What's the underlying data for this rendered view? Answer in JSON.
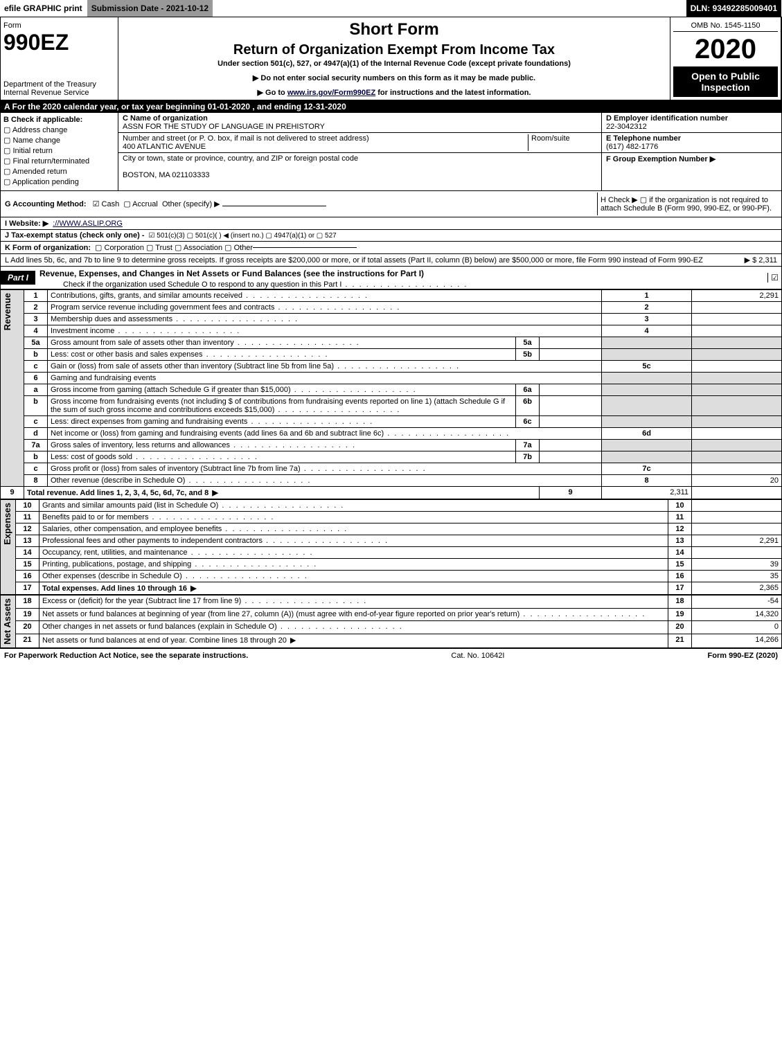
{
  "topbar": {
    "efile": "efile GRAPHIC print",
    "submission_label": "Submission Date - 2021-10-12",
    "dln": "DLN: 93492285009401"
  },
  "header": {
    "form_word": "Form",
    "form_number": "990EZ",
    "dept1": "Department of the Treasury",
    "dept2": "Internal Revenue Service",
    "title1": "Short Form",
    "title2": "Return of Organization Exempt From Income Tax",
    "subtitle": "Under section 501(c), 527, or 4947(a)(1) of the Internal Revenue Code (except private foundations)",
    "note1": "▶ Do not enter social security numbers on this form as it may be made public.",
    "note2_pre": "▶ Go to ",
    "note2_link": "www.irs.gov/Form990EZ",
    "note2_post": " for instructions and the latest information.",
    "omb": "OMB No. 1545-1150",
    "year": "2020",
    "open": "Open to Public Inspection"
  },
  "line_a": "A For the 2020 calendar year, or tax year beginning 01-01-2020 , and ending 12-31-2020",
  "box_b": {
    "title": "B  Check if applicable:",
    "opts": [
      "Address change",
      "Name change",
      "Initial return",
      "Final return/terminated",
      "Amended return",
      "Application pending"
    ]
  },
  "box_c": {
    "label": "C Name of organization",
    "name": "ASSN FOR THE STUDY OF LANGUAGE IN PREHISTORY",
    "street_label": "Number and street (or P. O. box, if mail is not delivered to street address)",
    "room_label": "Room/suite",
    "street": "400 ATLANTIC AVENUE",
    "city_label": "City or town, state or province, country, and ZIP or foreign postal code",
    "city": "BOSTON, MA  021103333"
  },
  "box_d": {
    "label": "D Employer identification number",
    "val": "22-3042312"
  },
  "box_e": {
    "label": "E Telephone number",
    "val": "(617) 482-1776"
  },
  "box_f": {
    "label": "F Group Exemption Number  ▶",
    "val": ""
  },
  "line_g": {
    "pre": "G Accounting Method:",
    "cash": "Cash",
    "accrual": "Accrual",
    "other": "Other (specify) ▶"
  },
  "line_h": {
    "text": "H  Check ▶  ▢  if the organization is not required to attach Schedule B (Form 990, 990-EZ, or 990-PF)."
  },
  "line_i": {
    "pre": "I Website: ▶",
    "val": "://WWW.ASLIP.ORG"
  },
  "line_j": {
    "pre": "J Tax-exempt status (check only one) -",
    "opts": "☑ 501(c)(3)  ▢ 501(c)(  ) ◀ (insert no.)  ▢ 4947(a)(1) or  ▢ 527"
  },
  "line_k": {
    "pre": "K Form of organization:",
    "opts": "▢ Corporation   ▢ Trust   ▢ Association   ▢ Other"
  },
  "line_l": {
    "text": "L Add lines 5b, 6c, and 7b to line 9 to determine gross receipts. If gross receipts are $200,000 or more, or if total assets (Part II, column (B) below) are $500,000 or more, file Form 990 instead of Form 990-EZ",
    "amount": "▶ $ 2,311"
  },
  "part1": {
    "tag": "Part I",
    "title": "Revenue, Expenses, and Changes in Net Assets or Fund Balances (see the instructions for Part I)",
    "note": "Check if the organization used Schedule O to respond to any question in this Part I",
    "check": "☑"
  },
  "side_labels": {
    "revenue": "Revenue",
    "expenses": "Expenses",
    "netassets": "Net Assets"
  },
  "rows": [
    {
      "n": "1",
      "d": "Contributions, gifts, grants, and similar amounts received",
      "r": "1",
      "a": "2,291"
    },
    {
      "n": "2",
      "d": "Program service revenue including government fees and contracts",
      "r": "2",
      "a": ""
    },
    {
      "n": "3",
      "d": "Membership dues and assessments",
      "r": "3",
      "a": ""
    },
    {
      "n": "4",
      "d": "Investment income",
      "r": "4",
      "a": ""
    },
    {
      "n": "5a",
      "d": "Gross amount from sale of assets other than inventory",
      "sub": "5a"
    },
    {
      "n": "b",
      "d": "Less: cost or other basis and sales expenses",
      "sub": "5b"
    },
    {
      "n": "c",
      "d": "Gain or (loss) from sale of assets other than inventory (Subtract line 5b from line 5a)",
      "r": "5c",
      "a": ""
    },
    {
      "n": "6",
      "d": "Gaming and fundraising events",
      "shade": true
    },
    {
      "n": "a",
      "d": "Gross income from gaming (attach Schedule G if greater than $15,000)",
      "sub": "6a"
    },
    {
      "n": "b",
      "d": "Gross income from fundraising events (not including $                    of contributions from fundraising events reported on line 1) (attach Schedule G if the sum of such gross income and contributions exceeds $15,000)",
      "sub": "6b"
    },
    {
      "n": "c",
      "d": "Less: direct expenses from gaming and fundraising events",
      "sub": "6c"
    },
    {
      "n": "d",
      "d": "Net income or (loss) from gaming and fundraising events (add lines 6a and 6b and subtract line 6c)",
      "r": "6d",
      "a": ""
    },
    {
      "n": "7a",
      "d": "Gross sales of inventory, less returns and allowances",
      "sub": "7a"
    },
    {
      "n": "b",
      "d": "Less: cost of goods sold",
      "sub": "7b"
    },
    {
      "n": "c",
      "d": "Gross profit or (loss) from sales of inventory (Subtract line 7b from line 7a)",
      "r": "7c",
      "a": ""
    },
    {
      "n": "8",
      "d": "Other revenue (describe in Schedule O)",
      "r": "8",
      "a": "20"
    },
    {
      "n": "9",
      "d": "Total revenue. Add lines 1, 2, 3, 4, 5c, 6d, 7c, and 8",
      "r": "9",
      "a": "2,311",
      "bold": true,
      "arrow": true
    }
  ],
  "exp_rows": [
    {
      "n": "10",
      "d": "Grants and similar amounts paid (list in Schedule O)",
      "r": "10",
      "a": ""
    },
    {
      "n": "11",
      "d": "Benefits paid to or for members",
      "r": "11",
      "a": ""
    },
    {
      "n": "12",
      "d": "Salaries, other compensation, and employee benefits",
      "r": "12",
      "a": ""
    },
    {
      "n": "13",
      "d": "Professional fees and other payments to independent contractors",
      "r": "13",
      "a": "2,291"
    },
    {
      "n": "14",
      "d": "Occupancy, rent, utilities, and maintenance",
      "r": "14",
      "a": ""
    },
    {
      "n": "15",
      "d": "Printing, publications, postage, and shipping",
      "r": "15",
      "a": "39"
    },
    {
      "n": "16",
      "d": "Other expenses (describe in Schedule O)",
      "r": "16",
      "a": "35"
    },
    {
      "n": "17",
      "d": "Total expenses. Add lines 10 through 16",
      "r": "17",
      "a": "2,365",
      "bold": true,
      "arrow": true
    }
  ],
  "na_rows": [
    {
      "n": "18",
      "d": "Excess or (deficit) for the year (Subtract line 17 from line 9)",
      "r": "18",
      "a": "-54"
    },
    {
      "n": "19",
      "d": "Net assets or fund balances at beginning of year (from line 27, column (A)) (must agree with end-of-year figure reported on prior year's return)",
      "r": "19",
      "a": "14,320"
    },
    {
      "n": "20",
      "d": "Other changes in net assets or fund balances (explain in Schedule O)",
      "r": "20",
      "a": "0"
    },
    {
      "n": "21",
      "d": "Net assets or fund balances at end of year. Combine lines 18 through 20",
      "r": "21",
      "a": "14,266",
      "arrow": true
    }
  ],
  "footer": {
    "left": "For Paperwork Reduction Act Notice, see the separate instructions.",
    "center": "Cat. No. 10642I",
    "right": "Form 990-EZ (2020)"
  }
}
